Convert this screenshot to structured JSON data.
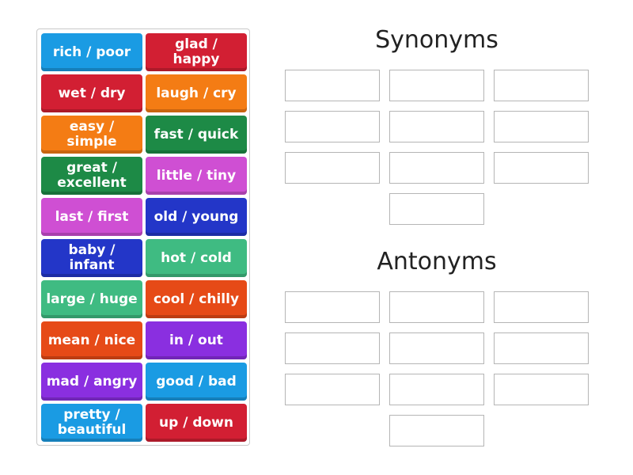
{
  "tiles": [
    {
      "label": "rich / poor",
      "color": "#1a9be3"
    },
    {
      "label": "glad / happy",
      "color": "#d21f33"
    },
    {
      "label": "wet / dry",
      "color": "#d21f33"
    },
    {
      "label": "laugh / cry",
      "color": "#f47c14"
    },
    {
      "label": "easy / simple",
      "color": "#f47c14"
    },
    {
      "label": "fast / quick",
      "color": "#1d8a46"
    },
    {
      "label": "great / excellent",
      "color": "#1d8a46"
    },
    {
      "label": "little / tiny",
      "color": "#cf4fd3"
    },
    {
      "label": "last / first",
      "color": "#cf4fd3"
    },
    {
      "label": "old / young",
      "color": "#2336c8"
    },
    {
      "label": "baby / infant",
      "color": "#2336c8"
    },
    {
      "label": "hot / cold",
      "color": "#3fbb82"
    },
    {
      "label": "large / huge",
      "color": "#3fbb82"
    },
    {
      "label": "cool / chilly",
      "color": "#e64a17"
    },
    {
      "label": "mean / nice",
      "color": "#e64a17"
    },
    {
      "label": "in / out",
      "color": "#8a2fe0"
    },
    {
      "label": "mad / angry",
      "color": "#8a2fe0"
    },
    {
      "label": "good / bad",
      "color": "#1a9be3"
    },
    {
      "label": "pretty / beautiful",
      "color": "#1a9be3"
    },
    {
      "label": "up / down",
      "color": "#d21f33"
    }
  ],
  "groups": {
    "synonyms": {
      "title": "Synonyms"
    },
    "antonyms": {
      "title": "Antonyms"
    }
  }
}
